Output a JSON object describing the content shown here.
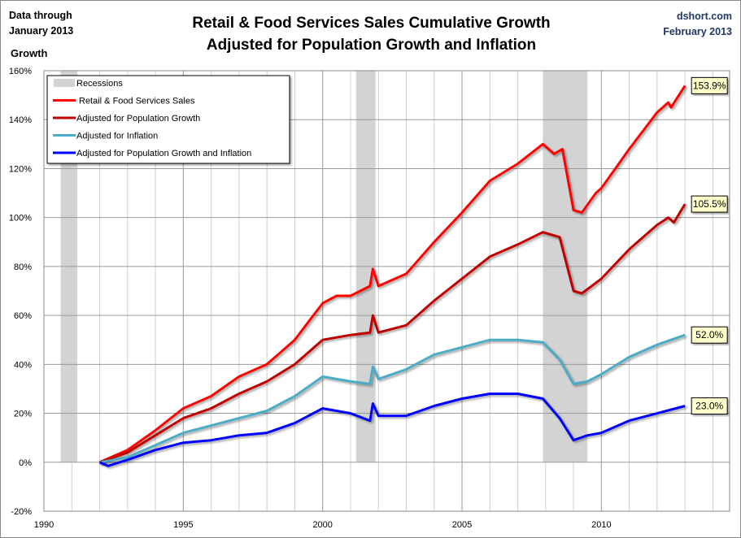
{
  "header": {
    "title_line1": "Retail & Food Services Sales Cumulative Growth",
    "title_line2": "Adjusted for Population Growth and Inflation",
    "left_note_line1": "Data through",
    "left_note_line2": "January 2013",
    "right_note_line1": "dshort.com",
    "right_note_line2": "February 2013"
  },
  "chart_data": {
    "type": "line",
    "title": "Retail & Food Services Sales Cumulative Growth Adjusted for Population Growth and Inflation",
    "ylabel": "Growth",
    "xlabel": "",
    "xlim": [
      1990,
      2014.6
    ],
    "ylim": [
      -20,
      160
    ],
    "x_ticks": [
      1990,
      1995,
      2000,
      2005,
      2010
    ],
    "y_ticks": [
      -20,
      0,
      20,
      40,
      60,
      80,
      100,
      120,
      140,
      160
    ],
    "y_tick_labels": [
      "-20%",
      "0%",
      "20%",
      "40%",
      "60%",
      "80%",
      "100%",
      "120%",
      "140%",
      "160%"
    ],
    "grid": true,
    "legend_position": "top-left",
    "recessions": {
      "name": "Recessions",
      "color": "#D3D3D3",
      "periods": [
        [
          1990.6,
          1991.2
        ],
        [
          2001.2,
          2001.9
        ],
        [
          2007.9,
          2009.5
        ]
      ]
    },
    "series": [
      {
        "name": "Retail & Food Services Sales",
        "color": "#FF0000",
        "end_label": "153.9%",
        "points": [
          [
            1992,
            0
          ],
          [
            1993,
            5
          ],
          [
            1994,
            13
          ],
          [
            1995,
            22
          ],
          [
            1996,
            27
          ],
          [
            1997,
            35
          ],
          [
            1998,
            40
          ],
          [
            1999,
            50
          ],
          [
            2000,
            65
          ],
          [
            2000.5,
            68
          ],
          [
            2001,
            68
          ],
          [
            2001.7,
            72
          ],
          [
            2001.8,
            79
          ],
          [
            2002,
            72
          ],
          [
            2003,
            77
          ],
          [
            2004,
            90
          ],
          [
            2005,
            102
          ],
          [
            2006,
            115
          ],
          [
            2007,
            122
          ],
          [
            2007.9,
            130
          ],
          [
            2008.3,
            126
          ],
          [
            2008.6,
            128
          ],
          [
            2009,
            103
          ],
          [
            2009.3,
            102
          ],
          [
            2009.8,
            110
          ],
          [
            2010,
            112
          ],
          [
            2011,
            128
          ],
          [
            2012,
            143
          ],
          [
            2012.4,
            147
          ],
          [
            2012.5,
            145
          ],
          [
            2013,
            153.9
          ]
        ]
      },
      {
        "name": "Adjusted for Population Growth",
        "color": "#C00000",
        "end_label": "105.5%",
        "points": [
          [
            1992,
            0
          ],
          [
            1993,
            4
          ],
          [
            1994,
            11
          ],
          [
            1995,
            18
          ],
          [
            1996,
            22
          ],
          [
            1997,
            28
          ],
          [
            1998,
            33
          ],
          [
            1999,
            40
          ],
          [
            2000,
            50
          ],
          [
            2001,
            52
          ],
          [
            2001.7,
            53
          ],
          [
            2001.8,
            60
          ],
          [
            2002,
            53
          ],
          [
            2003,
            56
          ],
          [
            2004,
            66
          ],
          [
            2005,
            75
          ],
          [
            2006,
            84
          ],
          [
            2007,
            89
          ],
          [
            2007.9,
            94
          ],
          [
            2008.5,
            92
          ],
          [
            2009,
            70
          ],
          [
            2009.3,
            69
          ],
          [
            2010,
            75
          ],
          [
            2011,
            87
          ],
          [
            2012,
            97
          ],
          [
            2012.4,
            100
          ],
          [
            2012.6,
            98
          ],
          [
            2013,
            105.5
          ]
        ]
      },
      {
        "name": "Adjusted for Inflation",
        "color": "#4BACC6",
        "end_label": "52.0%",
        "points": [
          [
            1992,
            0
          ],
          [
            1993,
            2
          ],
          [
            1994,
            7
          ],
          [
            1995,
            12
          ],
          [
            1996,
            15
          ],
          [
            1997,
            18
          ],
          [
            1998,
            21
          ],
          [
            1999,
            27
          ],
          [
            2000,
            35
          ],
          [
            2001,
            33
          ],
          [
            2001.7,
            32
          ],
          [
            2001.8,
            39
          ],
          [
            2002,
            34
          ],
          [
            2003,
            38
          ],
          [
            2004,
            44
          ],
          [
            2005,
            47
          ],
          [
            2006,
            50
          ],
          [
            2007,
            50
          ],
          [
            2007.9,
            49
          ],
          [
            2008.5,
            42
          ],
          [
            2009,
            32
          ],
          [
            2009.5,
            33
          ],
          [
            2010,
            36
          ],
          [
            2011,
            43
          ],
          [
            2012,
            48
          ],
          [
            2013,
            52
          ]
        ]
      },
      {
        "name": "Adjusted for Population Growth and Inflation",
        "color": "#0000FF",
        "end_label": "23.0%",
        "points": [
          [
            1992,
            0
          ],
          [
            1992.3,
            -1.5
          ],
          [
            1993,
            1
          ],
          [
            1994,
            5
          ],
          [
            1995,
            8
          ],
          [
            1996,
            9
          ],
          [
            1997,
            11
          ],
          [
            1998,
            12
          ],
          [
            1999,
            16
          ],
          [
            2000,
            22
          ],
          [
            2001,
            20
          ],
          [
            2001.7,
            17
          ],
          [
            2001.8,
            24
          ],
          [
            2002,
            19
          ],
          [
            2003,
            19
          ],
          [
            2004,
            23
          ],
          [
            2005,
            26
          ],
          [
            2006,
            28
          ],
          [
            2007,
            28
          ],
          [
            2007.9,
            26
          ],
          [
            2008.5,
            18
          ],
          [
            2009,
            9
          ],
          [
            2009.5,
            11
          ],
          [
            2010,
            12
          ],
          [
            2011,
            17
          ],
          [
            2012,
            20
          ],
          [
            2013,
            23
          ]
        ]
      }
    ]
  }
}
